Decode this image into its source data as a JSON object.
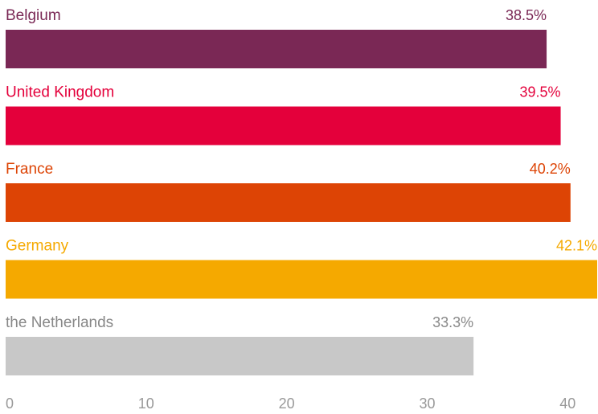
{
  "chart_data": {
    "type": "bar",
    "orientation": "horizontal",
    "title": "",
    "xlabel": "",
    "ylabel": "",
    "categories": [
      "Belgium",
      "United Kingdom",
      "France",
      "Germany",
      "the Netherlands"
    ],
    "values": [
      38.5,
      39.5,
      40.2,
      42.1,
      33.3
    ],
    "value_labels": [
      "38.5%",
      "39.5%",
      "40.2%",
      "42.1%",
      "33.3%"
    ],
    "colors": [
      "#7a2855",
      "#e4003b",
      "#dd4405",
      "#f5a900",
      "#c8c8c8"
    ],
    "label_colors": [
      "#7a2855",
      "#e4003b",
      "#dd4405",
      "#f5a900",
      "#888888"
    ],
    "xlim": [
      0,
      42.1
    ],
    "xticks": [
      0,
      10,
      20,
      30,
      40
    ],
    "xtick_labels": [
      "0",
      "10",
      "20",
      "30",
      "40"
    ],
    "grid": false,
    "legend": "none"
  }
}
